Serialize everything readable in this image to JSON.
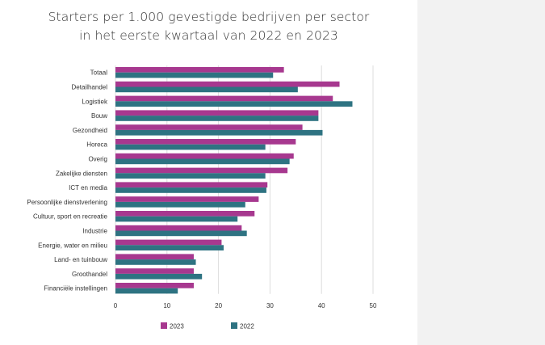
{
  "title": {
    "line1": "Starters per 1.000 gevestigde bedrijven per sector",
    "line2": "in het eerste kwartaal van 2022 en 2023"
  },
  "colors": {
    "series_2023": "#a7388f",
    "series_2022": "#2e7382",
    "grid": "#dddddd",
    "side_panel": "#f2f2f2"
  },
  "chart_data": {
    "type": "bar",
    "orientation": "horizontal",
    "title": "Starters per 1.000 gevestigde bedrijven per sector in het eerste kwartaal van 2022 en 2023",
    "categories": [
      "Totaal",
      "Detailhandel",
      "Logistiek",
      "Bouw",
      "Gezondheid",
      "Horeca",
      "Overig",
      "Zakelijke diensten",
      "ICT en media",
      "Persoonlijke dienstverlening",
      "Cultuur, sport en recreatie",
      "Industrie",
      "Energie, water en milieu",
      "Land- en tuinbouw",
      "Groothandel",
      "Financiële instellingen"
    ],
    "series": [
      {
        "name": "2023",
        "color": "#a7388f",
        "values": [
          32.7,
          43.5,
          42.2,
          39.4,
          36.3,
          35.0,
          34.6,
          33.4,
          29.5,
          27.8,
          27.0,
          24.5,
          20.6,
          15.2,
          15.2,
          15.2
        ]
      },
      {
        "name": "2022",
        "color": "#2e7382",
        "values": [
          30.6,
          35.4,
          46.0,
          39.4,
          40.2,
          29.1,
          33.8,
          29.1,
          29.3,
          25.2,
          23.7,
          25.5,
          21.0,
          15.6,
          16.8,
          12.1
        ]
      }
    ],
    "xlim": [
      0,
      50
    ],
    "xticks": [
      0,
      10,
      20,
      30,
      40,
      50
    ],
    "grid": true,
    "legend": "bottom"
  }
}
